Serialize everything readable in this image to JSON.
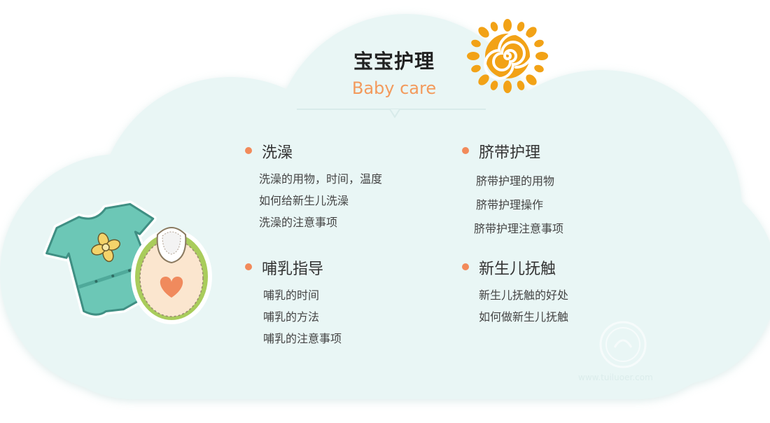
{
  "header": {
    "title": "宝宝护理",
    "subtitle": "Baby care"
  },
  "sections": [
    {
      "title": "洗澡",
      "items": [
        "洗澡的用物，时间，温度",
        "如何给新生儿洗澡",
        "洗澡的注意事项"
      ]
    },
    {
      "title": "脐带护理",
      "items": [
        "脐带护理的用物",
        "脐带护理操作",
        "脐带护理注意事项"
      ]
    },
    {
      "title": "哺乳指导",
      "items": [
        "哺乳的时间",
        "哺乳的方法",
        "哺乳的注意事项"
      ]
    },
    {
      "title": "新生儿抚触",
      "items": [
        "新生儿抚触的好处",
        "如何做新生儿抚触"
      ]
    }
  ],
  "watermark": {
    "text": "www.tuiluoer.com"
  },
  "colors": {
    "cloud": "#e9f6f5",
    "accent": "#f28a5a",
    "sun": "#f2a216",
    "onesie": "#6cc7b6",
    "bib": "#fbe6cf",
    "bib_trim": "#a9cc5b"
  },
  "icons": [
    "sun-icon",
    "baby-onesie-icon",
    "baby-bib-icon",
    "flower-icon",
    "heart-icon"
  ]
}
